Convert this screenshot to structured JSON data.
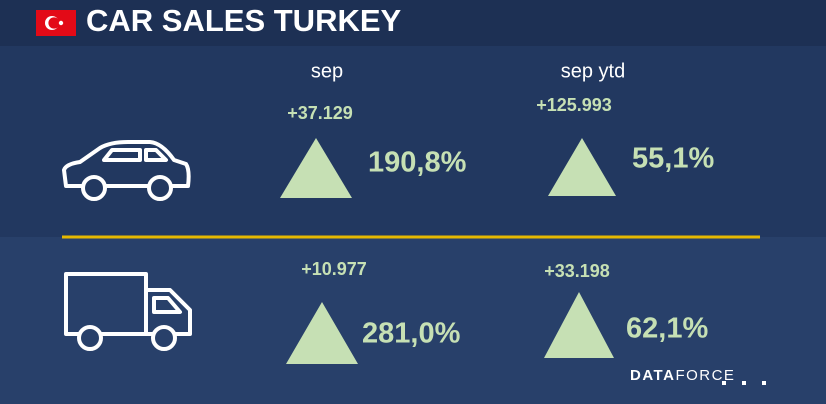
{
  "header": {
    "title": "CAR SALES TURKEY"
  },
  "columns": [
    "sep",
    "sep ytd"
  ],
  "rows": [
    {
      "cells": [
        {
          "change": "+37.129",
          "percent": "190,8%"
        },
        {
          "change": "+125.993",
          "percent": "55,1%"
        }
      ]
    },
    {
      "cells": [
        {
          "change": "+10.977",
          "percent": "281,0%"
        },
        {
          "change": "+33.198",
          "percent": "62,1%"
        }
      ]
    }
  ],
  "logo": [
    "DATA",
    "FORCE"
  ]
}
